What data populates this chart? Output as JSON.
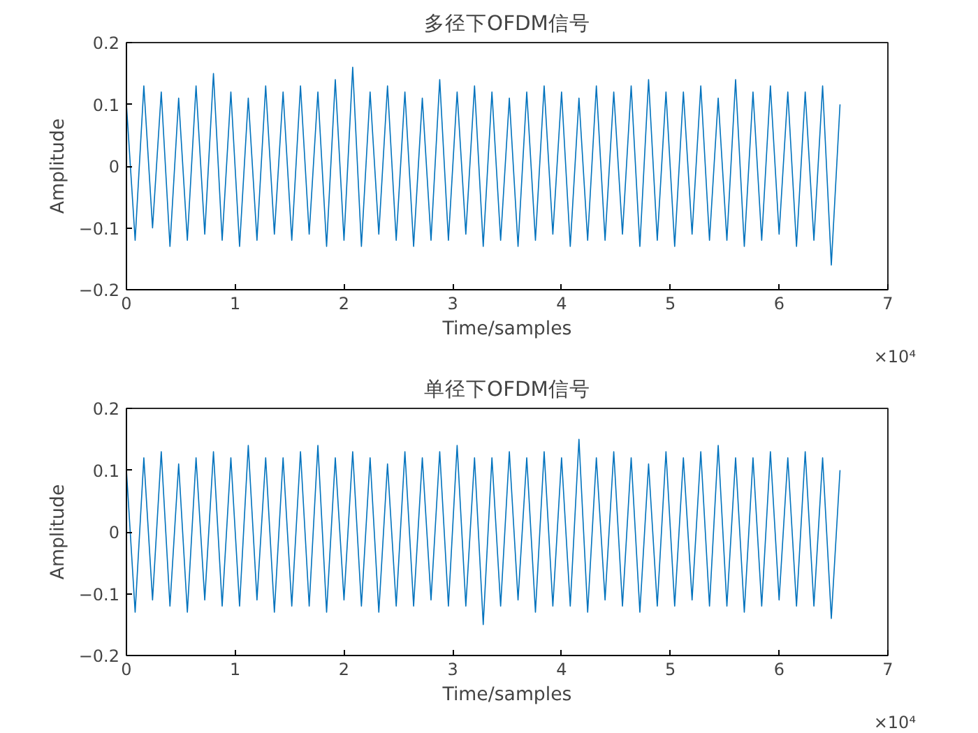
{
  "chart_data": [
    {
      "type": "line",
      "title": "多径下OFDM信号",
      "xlabel": "Time/samples",
      "ylabel": "Amplitude",
      "annotations": [
        "×10⁴"
      ],
      "grid": false,
      "xlim": [
        0,
        7
      ],
      "ylim": [
        -0.2,
        0.2
      ],
      "xticks": [
        0,
        1,
        2,
        3,
        4,
        5,
        6,
        7
      ],
      "yticks": [
        -0.2,
        -0.1,
        0,
        0.1,
        0.2
      ],
      "x": [
        0,
        0.08,
        0.16,
        0.24,
        0.32,
        0.4,
        0.48,
        0.56,
        0.64,
        0.72,
        0.8,
        0.88,
        0.96,
        1.04,
        1.12,
        1.2,
        1.28,
        1.36,
        1.44,
        1.52,
        1.6,
        1.68,
        1.76,
        1.84,
        1.92,
        2.0,
        2.08,
        2.16,
        2.24,
        2.32,
        2.4,
        2.48,
        2.56,
        2.64,
        2.72,
        2.8,
        2.88,
        2.96,
        3.04,
        3.12,
        3.2,
        3.28,
        3.36,
        3.44,
        3.52,
        3.6,
        3.68,
        3.76,
        3.84,
        3.92,
        4.0,
        4.08,
        4.16,
        4.24,
        4.32,
        4.4,
        4.48,
        4.56,
        4.64,
        4.72,
        4.8,
        4.88,
        4.96,
        5.04,
        5.12,
        5.2,
        5.28,
        5.36,
        5.44,
        5.52,
        5.6,
        5.68,
        5.76,
        5.84,
        5.92,
        6.0,
        6.08,
        6.16,
        6.24,
        6.32,
        6.4,
        6.48,
        6.56
      ],
      "series": [
        {
          "color": "#0072bd",
          "values": [
            0.1,
            -0.12,
            0.13,
            -0.1,
            0.12,
            -0.13,
            0.11,
            -0.12,
            0.13,
            -0.11,
            0.15,
            -0.12,
            0.12,
            -0.13,
            0.11,
            -0.12,
            0.13,
            -0.11,
            0.12,
            -0.12,
            0.13,
            -0.11,
            0.12,
            -0.13,
            0.14,
            -0.12,
            0.16,
            -0.13,
            0.12,
            -0.11,
            0.13,
            -0.12,
            0.12,
            -0.13,
            0.11,
            -0.12,
            0.14,
            -0.12,
            0.12,
            -0.11,
            0.13,
            -0.13,
            0.12,
            -0.12,
            0.11,
            -0.13,
            0.12,
            -0.12,
            0.13,
            -0.11,
            0.12,
            -0.13,
            0.11,
            -0.12,
            0.13,
            -0.12,
            0.12,
            -0.11,
            0.13,
            -0.13,
            0.14,
            -0.12,
            0.12,
            -0.13,
            0.12,
            -0.11,
            0.13,
            -0.12,
            0.11,
            -0.12,
            0.14,
            -0.13,
            0.12,
            -0.12,
            0.13,
            -0.11,
            0.12,
            -0.13,
            0.12,
            -0.12,
            0.13,
            -0.16,
            0.1
          ]
        }
      ]
    },
    {
      "type": "line",
      "title": "单径下OFDM信号",
      "xlabel": "Time/samples",
      "ylabel": "Amplitude",
      "annotations": [
        "×10⁴"
      ],
      "grid": false,
      "xlim": [
        0,
        7
      ],
      "ylim": [
        -0.2,
        0.2
      ],
      "xticks": [
        0,
        1,
        2,
        3,
        4,
        5,
        6,
        7
      ],
      "yticks": [
        -0.2,
        -0.1,
        0,
        0.1,
        0.2
      ],
      "x": [
        0,
        0.08,
        0.16,
        0.24,
        0.32,
        0.4,
        0.48,
        0.56,
        0.64,
        0.72,
        0.8,
        0.88,
        0.96,
        1.04,
        1.12,
        1.2,
        1.28,
        1.36,
        1.44,
        1.52,
        1.6,
        1.68,
        1.76,
        1.84,
        1.92,
        2.0,
        2.08,
        2.16,
        2.24,
        2.32,
        2.4,
        2.48,
        2.56,
        2.64,
        2.72,
        2.8,
        2.88,
        2.96,
        3.04,
        3.12,
        3.2,
        3.28,
        3.36,
        3.44,
        3.52,
        3.6,
        3.68,
        3.76,
        3.84,
        3.92,
        4.0,
        4.08,
        4.16,
        4.24,
        4.32,
        4.4,
        4.48,
        4.56,
        4.64,
        4.72,
        4.8,
        4.88,
        4.96,
        5.04,
        5.12,
        5.2,
        5.28,
        5.36,
        5.44,
        5.52,
        5.6,
        5.68,
        5.76,
        5.84,
        5.92,
        6.0,
        6.08,
        6.16,
        6.24,
        6.32,
        6.4,
        6.48,
        6.56
      ],
      "series": [
        {
          "color": "#0072bd",
          "values": [
            0.1,
            -0.13,
            0.12,
            -0.11,
            0.13,
            -0.12,
            0.11,
            -0.13,
            0.12,
            -0.11,
            0.13,
            -0.12,
            0.12,
            -0.12,
            0.14,
            -0.11,
            0.12,
            -0.13,
            0.12,
            -0.12,
            0.13,
            -0.12,
            0.14,
            -0.13,
            0.12,
            -0.11,
            0.13,
            -0.12,
            0.12,
            -0.13,
            0.11,
            -0.12,
            0.13,
            -0.12,
            0.12,
            -0.11,
            0.13,
            -0.12,
            0.14,
            -0.12,
            0.12,
            -0.15,
            0.12,
            -0.12,
            0.13,
            -0.11,
            0.12,
            -0.13,
            0.13,
            -0.12,
            0.12,
            -0.12,
            0.15,
            -0.13,
            0.12,
            -0.11,
            0.13,
            -0.12,
            0.12,
            -0.13,
            0.11,
            -0.12,
            0.13,
            -0.12,
            0.12,
            -0.11,
            0.13,
            -0.12,
            0.14,
            -0.12,
            0.12,
            -0.13,
            0.12,
            -0.12,
            0.13,
            -0.11,
            0.12,
            -0.12,
            0.13,
            -0.12,
            0.12,
            -0.14,
            0.1
          ]
        }
      ]
    }
  ]
}
